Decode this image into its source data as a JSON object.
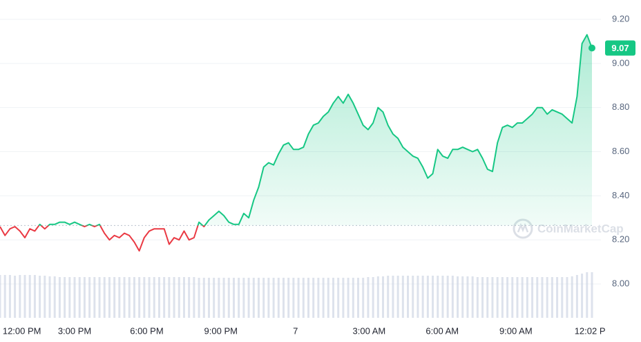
{
  "chart_data": {
    "type": "line",
    "watermark": "CoinMarketCap",
    "up_color": "#16c784",
    "down_color": "#ea3943",
    "baseline": 8.265,
    "grid": true,
    "xlim": [
      0,
      119
    ],
    "xticks": [
      {
        "value": 4.4,
        "label": "12:00 PM"
      },
      {
        "value": 15,
        "label": "3:00 PM"
      },
      {
        "value": 29.5,
        "label": "6:00 PM"
      },
      {
        "value": 44.4,
        "label": "9:00 PM"
      },
      {
        "value": 59.4,
        "label": "7"
      },
      {
        "value": 74.2,
        "label": "3:00 AM"
      },
      {
        "value": 88.9,
        "label": "6:00 AM"
      },
      {
        "value": 103.7,
        "label": "9:00 AM"
      },
      {
        "value": 118.6,
        "label": "12:02 P"
      }
    ],
    "ylim": [
      7.85,
      9.28
    ],
    "yticks": [
      {
        "value": 8,
        "label": "8.00"
      },
      {
        "value": 8.2,
        "label": "8.20"
      },
      {
        "value": 8.4,
        "label": "8.40"
      },
      {
        "value": 8.6,
        "label": "8.60"
      },
      {
        "value": 8.8,
        "label": "8.80"
      },
      {
        "value": 9,
        "label": "9.00"
      },
      {
        "value": 9.2,
        "label": "9.20"
      }
    ],
    "values": [
      8.26,
      8.22,
      8.25,
      8.26,
      8.24,
      8.21,
      8.25,
      8.24,
      8.27,
      8.25,
      8.27,
      8.27,
      8.28,
      8.28,
      8.27,
      8.28,
      8.27,
      8.26,
      8.27,
      8.26,
      8.27,
      8.23,
      8.2,
      8.22,
      8.21,
      8.23,
      8.22,
      8.19,
      8.15,
      8.21,
      8.24,
      8.25,
      8.25,
      8.25,
      8.18,
      8.21,
      8.2,
      8.24,
      8.2,
      8.21,
      8.28,
      8.26,
      8.29,
      8.31,
      8.33,
      8.31,
      8.28,
      8.27,
      8.27,
      8.32,
      8.3,
      8.38,
      8.44,
      8.53,
      8.55,
      8.54,
      8.59,
      8.63,
      8.64,
      8.61,
      8.61,
      8.62,
      8.68,
      8.72,
      8.73,
      8.76,
      8.78,
      8.82,
      8.85,
      8.82,
      8.86,
      8.82,
      8.77,
      8.72,
      8.7,
      8.73,
      8.8,
      8.78,
      8.72,
      8.68,
      8.66,
      8.62,
      8.6,
      8.58,
      8.57,
      8.53,
      8.48,
      8.5,
      8.61,
      8.58,
      8.57,
      8.61,
      8.61,
      8.62,
      8.61,
      8.6,
      8.61,
      8.57,
      8.52,
      8.51,
      8.64,
      8.71,
      8.72,
      8.71,
      8.73,
      8.73,
      8.75,
      8.77,
      8.8,
      8.8,
      8.77,
      8.79,
      8.78,
      8.77,
      8.75,
      8.73,
      8.85,
      9.09,
      9.13,
      9.07
    ],
    "volume_color": "#cfd6e4",
    "volume_lim": [
      0,
      100
    ],
    "volume": [
      62,
      62,
      62,
      61,
      62,
      62,
      62,
      62,
      61,
      61,
      60,
      60,
      59,
      59,
      59,
      59,
      59,
      59,
      59,
      59,
      59,
      59,
      59,
      59,
      59,
      59,
      59,
      59,
      59,
      59,
      59,
      59,
      59,
      59,
      59,
      59,
      59,
      59,
      59,
      59,
      58,
      58,
      58,
      58,
      58,
      58,
      58,
      58,
      58,
      58,
      58,
      58,
      58,
      58,
      58,
      58,
      58,
      58,
      58,
      58,
      58,
      58,
      58,
      58,
      58,
      58,
      58,
      58,
      58,
      58,
      58,
      58,
      58,
      58,
      59,
      59,
      60,
      60,
      61,
      61,
      61,
      61,
      61,
      61,
      61,
      61,
      61,
      61,
      61,
      61,
      61,
      61,
      60,
      60,
      60,
      60,
      59,
      59,
      59,
      59,
      59,
      59,
      59,
      59,
      59,
      59,
      59,
      59,
      59,
      59,
      59,
      59,
      59,
      59,
      59,
      60,
      62,
      64,
      66,
      66
    ]
  }
}
